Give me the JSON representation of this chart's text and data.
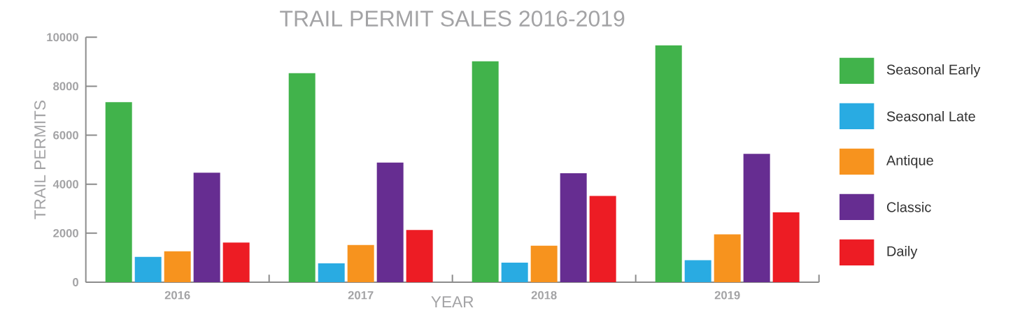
{
  "chart_data": {
    "type": "bar",
    "title": "TRAIL PERMIT SALES 2016-2019",
    "xlabel": "YEAR",
    "ylabel": "TRAIL PERMITS",
    "categories": [
      "2016",
      "2017",
      "2018",
      "2019"
    ],
    "series": [
      {
        "name": "Seasonal Early",
        "color": "#41b34b",
        "values": [
          7350,
          8530,
          9020,
          9670
        ]
      },
      {
        "name": "Seasonal Late",
        "color": "#29abe2",
        "values": [
          1030,
          770,
          800,
          900
        ]
      },
      {
        "name": "Antique",
        "color": "#f7931e",
        "values": [
          1260,
          1520,
          1490,
          1950
        ]
      },
      {
        "name": "Classic",
        "color": "#662d91",
        "values": [
          4470,
          4880,
          4450,
          5240
        ]
      },
      {
        "name": "Daily",
        "color": "#ed1c24",
        "values": [
          1620,
          2130,
          3520,
          2850
        ]
      }
    ],
    "ylim": [
      0,
      10000
    ],
    "yticks": [
      0,
      2000,
      4000,
      6000,
      8000,
      10000
    ],
    "legend": "right"
  }
}
